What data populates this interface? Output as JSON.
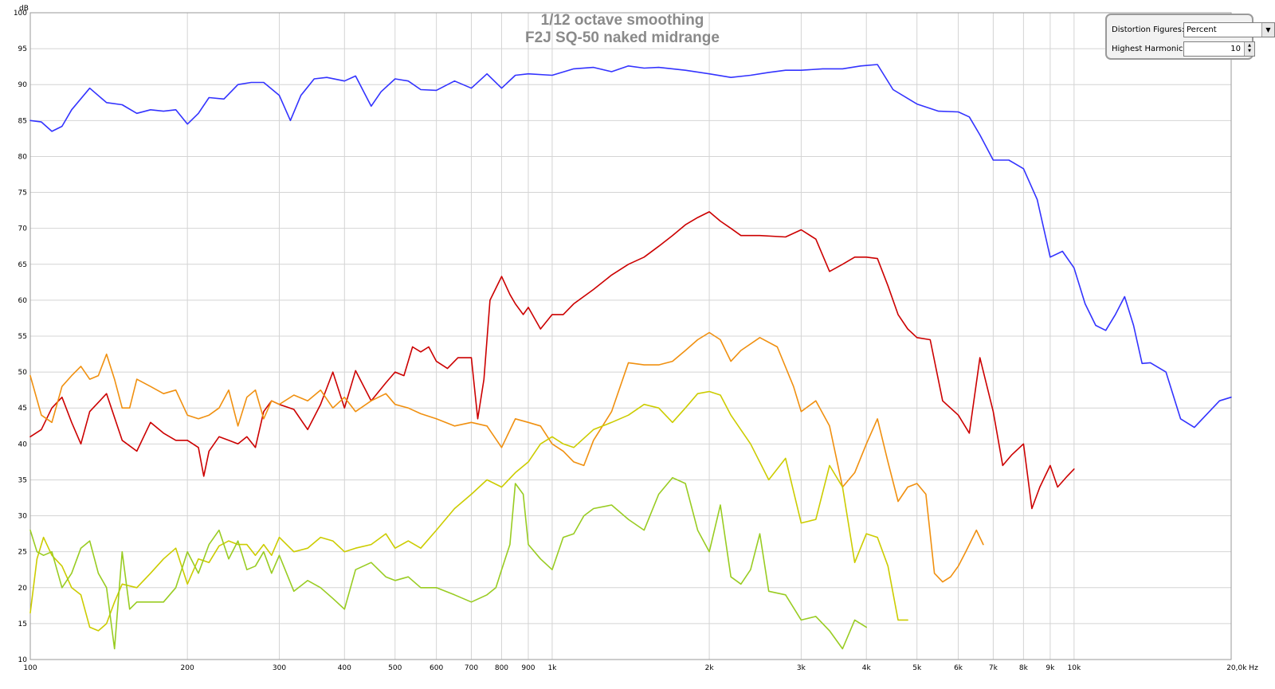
{
  "chart_data": {
    "type": "line",
    "title": "1/12 octave smoothing",
    "subtitle": "F2J SQ-50 naked midrange",
    "ylabel": "dB",
    "xlabel": "Hz",
    "x_scale": "log",
    "xlim": [
      100,
      20000
    ],
    "ylim": [
      10,
      100
    ],
    "grid": true,
    "y_ticks": [
      10,
      15,
      20,
      25,
      30,
      35,
      40,
      45,
      50,
      55,
      60,
      65,
      70,
      75,
      80,
      85,
      90,
      95,
      100
    ],
    "y_tick_labels": [
      "10",
      "15",
      "20",
      "25",
      "30",
      "35",
      "40",
      "45",
      "50",
      "55",
      "60",
      "65",
      "70",
      "75",
      "80",
      "85",
      "90",
      "95",
      "100"
    ],
    "x_ticks": [
      100,
      200,
      300,
      400,
      500,
      600,
      700,
      800,
      900,
      1000,
      2000,
      3000,
      4000,
      5000,
      6000,
      7000,
      8000,
      9000,
      10000,
      20000
    ],
    "x_tick_labels": [
      "100",
      "200",
      "300",
      "400",
      "500",
      "600",
      "700",
      "800",
      "900",
      "1k",
      "2k",
      "3k",
      "4k",
      "5k",
      "6k",
      "7k",
      "8k",
      "9k",
      "10k",
      "20,0k Hz"
    ],
    "series": [
      {
        "color": "#3333ff",
        "x": [
          100,
          105,
          110,
          115,
          120,
          130,
          140,
          150,
          160,
          170,
          180,
          190,
          200,
          210,
          220,
          235,
          250,
          265,
          280,
          300,
          315,
          330,
          350,
          370,
          400,
          420,
          450,
          470,
          500,
          530,
          560,
          600,
          650,
          700,
          750,
          800,
          850,
          900,
          1000,
          1100,
          1200,
          1300,
          1400,
          1500,
          1600,
          1800,
          2000,
          2200,
          2400,
          2600,
          2800,
          3000,
          3300,
          3600,
          3900,
          4200,
          4500,
          5000,
          5500,
          6000,
          6300,
          6600,
          7000,
          7500,
          8000,
          8500,
          9000,
          9500,
          10000,
          10500,
          11000,
          11500,
          12000,
          12500,
          13000,
          13500,
          14000,
          15000,
          16000,
          17000,
          18000,
          19000,
          20000
        ],
        "y": [
          85,
          84.8,
          83.5,
          84.2,
          86.5,
          89.5,
          87.5,
          87.2,
          86,
          86.5,
          86.3,
          86.5,
          84.5,
          86,
          88.2,
          88,
          90,
          90.3,
          90.3,
          88.5,
          85,
          88.5,
          90.8,
          91,
          90.5,
          91.2,
          87,
          89,
          90.8,
          90.5,
          89.3,
          89.2,
          90.5,
          89.5,
          91.5,
          89.5,
          91.3,
          91.5,
          91.3,
          92.2,
          92.4,
          91.8,
          92.6,
          92.3,
          92.4,
          92,
          91.5,
          91,
          91.3,
          91.7,
          92,
          92,
          92.2,
          92.2,
          92.6,
          92.8,
          89.3,
          87.3,
          86.3,
          86.2,
          85.5,
          83,
          79.5,
          79.5,
          78.3,
          74,
          66,
          66.8,
          64.5,
          59.5,
          56.5,
          55.8,
          58,
          60.5,
          56.5,
          51.2,
          51.3,
          50,
          43.5,
          42.3,
          44.2,
          46,
          46.5
        ]
      },
      {
        "color": "#cc0000",
        "x": [
          100,
          105,
          110,
          115,
          120,
          125,
          130,
          140,
          150,
          160,
          170,
          180,
          190,
          200,
          210,
          215,
          220,
          230,
          240,
          250,
          260,
          270,
          280,
          290,
          300,
          320,
          340,
          360,
          380,
          400,
          420,
          450,
          480,
          500,
          520,
          540,
          560,
          580,
          600,
          630,
          660,
          700,
          720,
          740,
          760,
          800,
          830,
          850,
          880,
          900,
          950,
          1000,
          1050,
          1100,
          1200,
          1300,
          1400,
          1500,
          1600,
          1700,
          1800,
          1900,
          2000,
          2100,
          2200,
          2300,
          2500,
          2800,
          3000,
          3200,
          3400,
          3600,
          3800,
          4000,
          4200,
          4400,
          4600,
          4800,
          5000,
          5300,
          5600,
          6000,
          6300,
          6600,
          7000,
          7300,
          7600,
          8000,
          8300,
          8600,
          9000,
          9300,
          9700,
          10000
        ],
        "y": [
          41,
          42,
          45,
          46.5,
          43,
          40,
          44.5,
          47,
          40.5,
          39,
          43,
          41.5,
          40.5,
          40.5,
          39.5,
          35.5,
          39,
          41,
          40.5,
          40,
          41,
          39.5,
          44.5,
          46,
          45.5,
          44.8,
          42,
          45.5,
          50,
          45,
          50.2,
          46,
          48.5,
          50,
          49.5,
          53.5,
          52.8,
          53.5,
          51.5,
          50.5,
          52,
          52,
          43.5,
          49,
          60,
          63.3,
          60.8,
          59.5,
          58,
          59,
          56,
          58,
          58,
          59.5,
          61.5,
          63.5,
          65,
          66,
          67.5,
          69,
          70.5,
          71.5,
          72.3,
          71,
          70,
          69,
          69,
          68.8,
          69.8,
          68.5,
          64,
          65,
          66,
          66,
          65.8,
          62,
          58,
          56,
          54.8,
          54.5,
          46,
          44,
          41.5,
          52,
          44.5,
          37,
          38.5,
          40,
          31,
          34,
          37,
          34,
          35.5,
          36.5
        ]
      },
      {
        "color": "#f09010",
        "x": [
          100,
          105,
          110,
          115,
          120,
          125,
          130,
          135,
          140,
          145,
          150,
          155,
          160,
          170,
          180,
          190,
          200,
          210,
          220,
          230,
          240,
          250,
          260,
          270,
          280,
          290,
          300,
          320,
          340,
          360,
          380,
          400,
          420,
          450,
          480,
          500,
          530,
          560,
          600,
          650,
          700,
          750,
          800,
          850,
          900,
          950,
          1000,
          1050,
          1100,
          1150,
          1200,
          1300,
          1400,
          1500,
          1600,
          1700,
          1800,
          1900,
          2000,
          2100,
          2200,
          2300,
          2500,
          2700,
          2900,
          3000,
          3200,
          3400,
          3600,
          3800,
          4000,
          4200,
          4400,
          4600,
          4800,
          5000,
          5200,
          5400,
          5600,
          5800,
          6000,
          6200,
          6500,
          6700
        ],
        "y": [
          49.5,
          44,
          43,
          48,
          49.5,
          50.8,
          49,
          49.5,
          52.5,
          49,
          45,
          45,
          49,
          48,
          47,
          47.5,
          44,
          43.5,
          44,
          45,
          47.5,
          42.5,
          46.5,
          47.5,
          43.5,
          46,
          45.5,
          46.8,
          46,
          47.5,
          45,
          46.5,
          44.5,
          46,
          47,
          45.5,
          45,
          44.2,
          43.5,
          42.5,
          43,
          42.5,
          39.5,
          43.5,
          43,
          42.5,
          40,
          39,
          37.5,
          37,
          40.5,
          44.5,
          51.3,
          51,
          51,
          51.5,
          53,
          54.5,
          55.5,
          54.5,
          51.5,
          53,
          54.8,
          53.5,
          48,
          44.5,
          46,
          42.5,
          34,
          36,
          40,
          43.5,
          37.5,
          32,
          34,
          34.5,
          33,
          22,
          20.8,
          21.5,
          23,
          25,
          28,
          26
        ]
      },
      {
        "color": "#cccc00",
        "x": [
          100,
          103,
          106,
          110,
          115,
          120,
          125,
          130,
          135,
          140,
          145,
          150,
          160,
          170,
          180,
          190,
          200,
          210,
          220,
          230,
          240,
          250,
          260,
          270,
          280,
          290,
          300,
          320,
          340,
          360,
          380,
          400,
          420,
          450,
          480,
          500,
          530,
          560,
          600,
          650,
          700,
          750,
          800,
          850,
          900,
          950,
          1000,
          1050,
          1100,
          1200,
          1300,
          1400,
          1500,
          1600,
          1700,
          1800,
          1900,
          2000,
          2100,
          2200,
          2400,
          2600,
          2800,
          3000,
          3200,
          3400,
          3600,
          3800,
          4000,
          4200,
          4400,
          4600,
          4800
        ],
        "y": [
          16.5,
          24,
          27,
          24.5,
          23,
          20,
          19,
          14.5,
          14,
          15,
          18,
          20.5,
          20,
          22,
          24,
          25.5,
          20.5,
          24,
          23.5,
          25.8,
          26.5,
          26,
          26,
          24.5,
          26,
          24.5,
          27,
          25,
          25.5,
          27,
          26.5,
          25,
          25.5,
          26,
          27.5,
          25.5,
          26.5,
          25.5,
          28,
          31,
          33,
          35,
          34,
          36,
          37.5,
          40,
          41,
          40,
          39.5,
          42,
          43,
          44,
          45.5,
          45,
          43,
          45,
          47,
          47.3,
          46.8,
          44,
          40,
          35,
          38,
          29,
          29.5,
          37,
          34,
          23.5,
          27.5,
          27,
          23,
          15.5,
          15.5
        ]
      },
      {
        "color": "#99cc22",
        "x": [
          100,
          103,
          106,
          110,
          115,
          120,
          125,
          130,
          135,
          140,
          145,
          150,
          155,
          160,
          170,
          180,
          190,
          200,
          210,
          220,
          230,
          240,
          250,
          260,
          270,
          280,
          290,
          300,
          320,
          340,
          360,
          380,
          400,
          420,
          450,
          480,
          500,
          530,
          560,
          600,
          650,
          700,
          750,
          780,
          800,
          830,
          850,
          880,
          900,
          950,
          1000,
          1050,
          1100,
          1150,
          1200,
          1300,
          1400,
          1500,
          1600,
          1700,
          1800,
          1900,
          2000,
          2100,
          2200,
          2300,
          2400,
          2500,
          2600,
          2800,
          3000,
          3200,
          3400,
          3600,
          3800,
          4000
        ],
        "y": [
          28,
          25,
          24.5,
          25,
          20,
          22,
          25.5,
          26.5,
          22,
          20,
          11.5,
          25,
          17,
          18,
          18,
          18,
          20,
          25,
          22,
          26,
          28,
          24,
          26.5,
          22.5,
          23,
          25,
          22,
          24.5,
          19.5,
          21,
          20,
          18.5,
          17,
          22.5,
          23.5,
          21.5,
          21,
          21.5,
          20,
          20,
          19,
          18,
          19,
          20,
          22.5,
          26,
          34.5,
          33,
          26,
          24,
          22.5,
          27,
          27.5,
          30,
          31,
          31.5,
          29.5,
          28,
          33,
          35.3,
          34.5,
          28,
          25,
          31.5,
          21.5,
          20.5,
          22.5,
          27.5,
          19.5,
          19,
          15.5,
          16,
          14,
          11.5,
          15.5,
          14.5
        ]
      }
    ]
  },
  "controls": {
    "distortion_label": "Distortion Figures:",
    "distortion_value": "Percent",
    "harmonic_label": "Highest Harmonic:",
    "harmonic_value": "10"
  }
}
